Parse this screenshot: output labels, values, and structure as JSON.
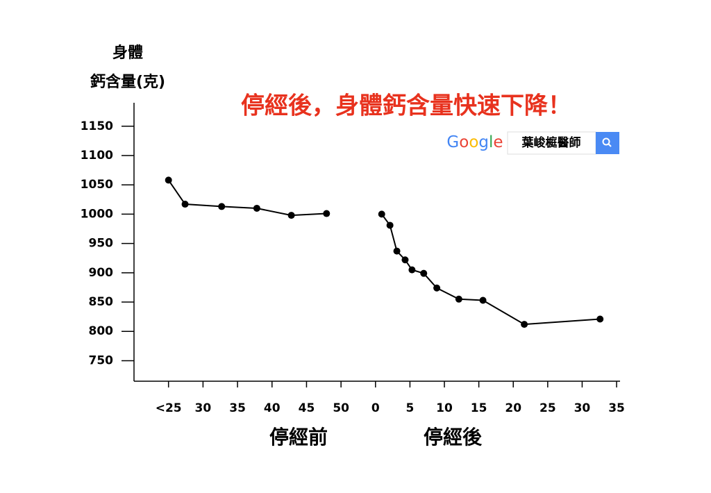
{
  "chart_data": {
    "type": "line",
    "title": "停經後，身體鈣含量快速下降！",
    "y_label": [
      "身體",
      "鈣含量(克)"
    ],
    "ylim": [
      715,
      1190
    ],
    "yticks": [
      750,
      800,
      850,
      900,
      950,
      1000,
      1050,
      1100,
      1150
    ],
    "color": "#000000",
    "search_widget": {
      "logo": "Google",
      "query": "葉峻榳醫師"
    },
    "panels": [
      {
        "label": "停經前",
        "xlim": [
          20,
          52.5
        ],
        "xticks": [
          {
            "value": 25,
            "label": "<25"
          },
          30,
          35,
          40,
          45,
          50
        ],
        "series": [
          {
            "x": [
              25,
              27.4,
              32.7,
              37.8,
              42.8,
              47.9
            ],
            "y": [
              1058,
              1017,
              1013,
              1010,
              998,
              1001
            ]
          }
        ]
      },
      {
        "label": "停經後",
        "xlim": [
          -2.5,
          35.5
        ],
        "xticks": [
          0,
          5,
          10,
          15,
          20,
          25,
          30,
          35
        ],
        "series": [
          {
            "x": [
              0.9,
              2.1,
              3.1,
              4.3,
              5.3,
              7.0,
              8.9,
              12.1,
              15.6,
              21.6,
              32.6
            ],
            "y": [
              1000,
              981,
              937,
              922,
              905,
              899,
              874,
              855,
              853,
              812,
              821
            ]
          }
        ]
      }
    ]
  }
}
